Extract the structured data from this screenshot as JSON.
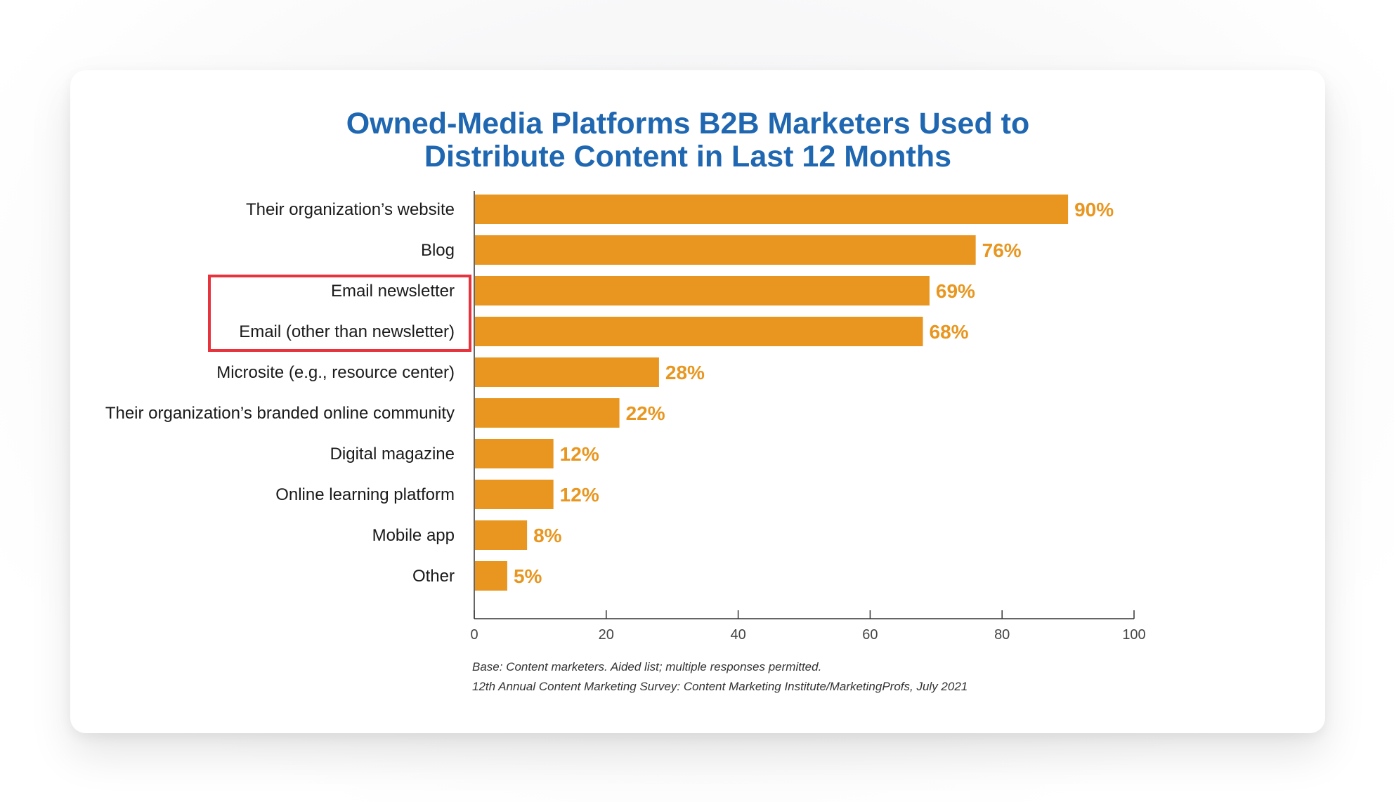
{
  "chart_data": {
    "type": "bar",
    "orientation": "horizontal",
    "title": "Owned-Media Platforms B2B Marketers Used to Distribute Content in Last 12 Months",
    "title_lines": [
      "Owned-Media Platforms B2B Marketers Used to",
      "Distribute Content in Last 12 Months"
    ],
    "categories": [
      "Their organization’s website",
      "Blog",
      "Email newsletter",
      "Email (other than newsletter)",
      "Microsite (e.g., resource center)",
      "Their organization’s branded online community",
      "Digital magazine",
      "Online learning platform",
      "Mobile app",
      "Other"
    ],
    "values": [
      90,
      76,
      69,
      68,
      28,
      22,
      12,
      12,
      8,
      5
    ],
    "value_labels": [
      "90%",
      "76%",
      "69%",
      "68%",
      "28%",
      "22%",
      "12%",
      "12%",
      "8%",
      "5%"
    ],
    "xlim": [
      0,
      100
    ],
    "xticks": [
      0,
      20,
      40,
      60,
      80,
      100
    ],
    "xlabel": "",
    "ylabel": "",
    "grid": false,
    "highlighted_categories": [
      "Email newsletter",
      "Email (other than newsletter)"
    ],
    "footnotes": [
      "Base: Content marketers. Aided list; multiple responses permitted.",
      "12th Annual Content Marketing Survey: Content Marketing Institute/MarketingProfs, July 2021"
    ]
  },
  "colors": {
    "bar": "#e8961f",
    "title": "#1f67b1",
    "highlight_box": "#e8323c",
    "axis": "#333333"
  }
}
